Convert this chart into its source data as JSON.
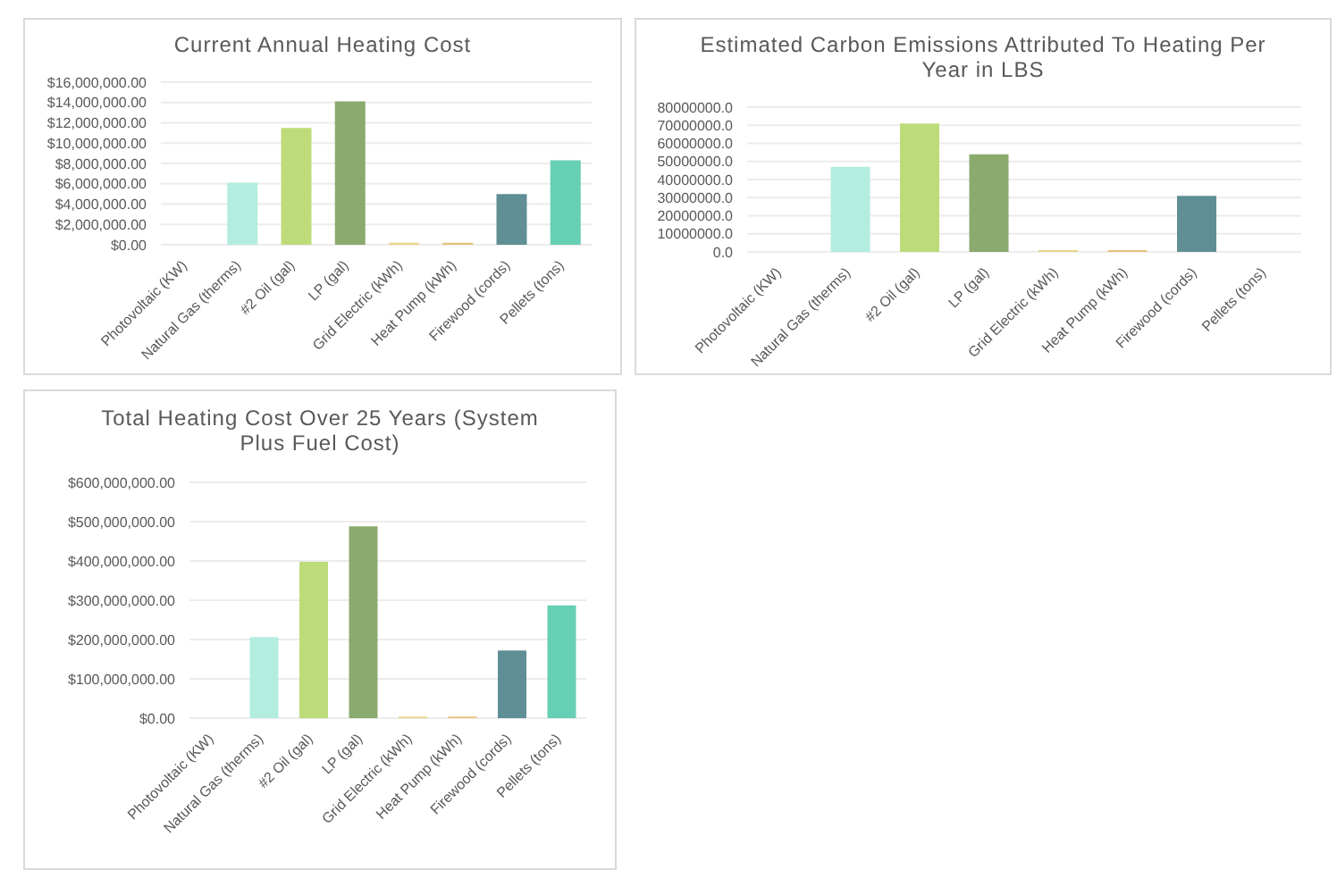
{
  "chart_data": [
    {
      "type": "bar",
      "title": "Current Annual Heating Cost",
      "categories": [
        "Photovoltaic (KW)",
        "Natural Gas (therms)",
        "#2 Oil (gal)",
        "LP (gal)",
        "Grid Electric (kWh)",
        "Heat Pump (kWh)",
        "Firewood  (cords)",
        "Pellets (tons)"
      ],
      "values": [
        0,
        6100000,
        11500000,
        14100000,
        200000,
        200000,
        5000000,
        8300000
      ],
      "colors": [
        "#9ec5e8",
        "#b3ede0",
        "#bedb7a",
        "#8aaa6e",
        "#e8d58a",
        "#e8c27a",
        "#5f8f94",
        "#66cfb4"
      ],
      "ylim": [
        0,
        16000000
      ],
      "yticks": [
        {
          "value": 0,
          "label": "$0.00"
        },
        {
          "value": 2000000,
          "label": "$2,000,000.00"
        },
        {
          "value": 4000000,
          "label": "$4,000,000.00"
        },
        {
          "value": 6000000,
          "label": "$6,000,000.00"
        },
        {
          "value": 8000000,
          "label": "$8,000,000.00"
        },
        {
          "value": 10000000,
          "label": "$10,000,000.00"
        },
        {
          "value": 12000000,
          "label": "$12,000,000.00"
        },
        {
          "value": 14000000,
          "label": "$14,000,000.00"
        },
        {
          "value": 16000000,
          "label": "$16,000,000.00"
        }
      ],
      "grid": "y"
    },
    {
      "type": "bar",
      "title": "Estimated Carbon Emissions Attributed To Heating Per Year in LBS",
      "categories": [
        "Photovoltaic (KW)",
        "Natural Gas (therms)",
        "#2 Oil (gal)",
        "LP (gal)",
        "Grid Electric (kWh)",
        "Heat Pump (kWh)",
        "Firewood  (cords)",
        "Pellets (tons)"
      ],
      "values": [
        0,
        47000000,
        71000000,
        54000000,
        1000000,
        1000000,
        31000000,
        0
      ],
      "colors": [
        "#9ec5e8",
        "#b3ede0",
        "#bedb7a",
        "#8aaa6e",
        "#e8d58a",
        "#e8c27a",
        "#5f8f94",
        "#66cfb4"
      ],
      "ylim": [
        0,
        80000000
      ],
      "yticks": [
        {
          "value": 0,
          "label": "0.0"
        },
        {
          "value": 10000000,
          "label": "10000000.0"
        },
        {
          "value": 20000000,
          "label": "20000000.0"
        },
        {
          "value": 30000000,
          "label": "30000000.0"
        },
        {
          "value": 40000000,
          "label": "40000000.0"
        },
        {
          "value": 50000000,
          "label": "50000000.0"
        },
        {
          "value": 60000000,
          "label": "60000000.0"
        },
        {
          "value": 70000000,
          "label": "70000000.0"
        },
        {
          "value": 80000000,
          "label": "80000000.0"
        }
      ],
      "grid": "y"
    },
    {
      "type": "bar",
      "title": "Total Heating Cost Over 25 Years (System Plus Fuel Cost)",
      "categories": [
        "Photovoltaic (KW)",
        "Natural Gas (therms)",
        "#2 Oil (gal)",
        "LP (gal)",
        "Grid Electric (kWh)",
        "Heat Pump (kWh)",
        "Firewood  (cords)",
        "Pellets (tons)"
      ],
      "values": [
        0,
        206000000,
        398000000,
        488000000,
        4000000,
        4000000,
        172000000,
        287000000
      ],
      "colors": [
        "#9ec5e8",
        "#b3ede0",
        "#bedb7a",
        "#8aaa6e",
        "#e8d58a",
        "#e8c27a",
        "#5f8f94",
        "#66cfb4"
      ],
      "ylim": [
        0,
        600000000
      ],
      "yticks": [
        {
          "value": 0,
          "label": "$0.00"
        },
        {
          "value": 100000000,
          "label": "$100,000,000.00"
        },
        {
          "value": 200000000,
          "label": "$200,000,000.00"
        },
        {
          "value": 300000000,
          "label": "$300,000,000.00"
        },
        {
          "value": 400000000,
          "label": "$400,000,000.00"
        },
        {
          "value": 500000000,
          "label": "$500,000,000.00"
        },
        {
          "value": 600000000,
          "label": "$600,000,000.00"
        }
      ],
      "grid": "y"
    }
  ]
}
